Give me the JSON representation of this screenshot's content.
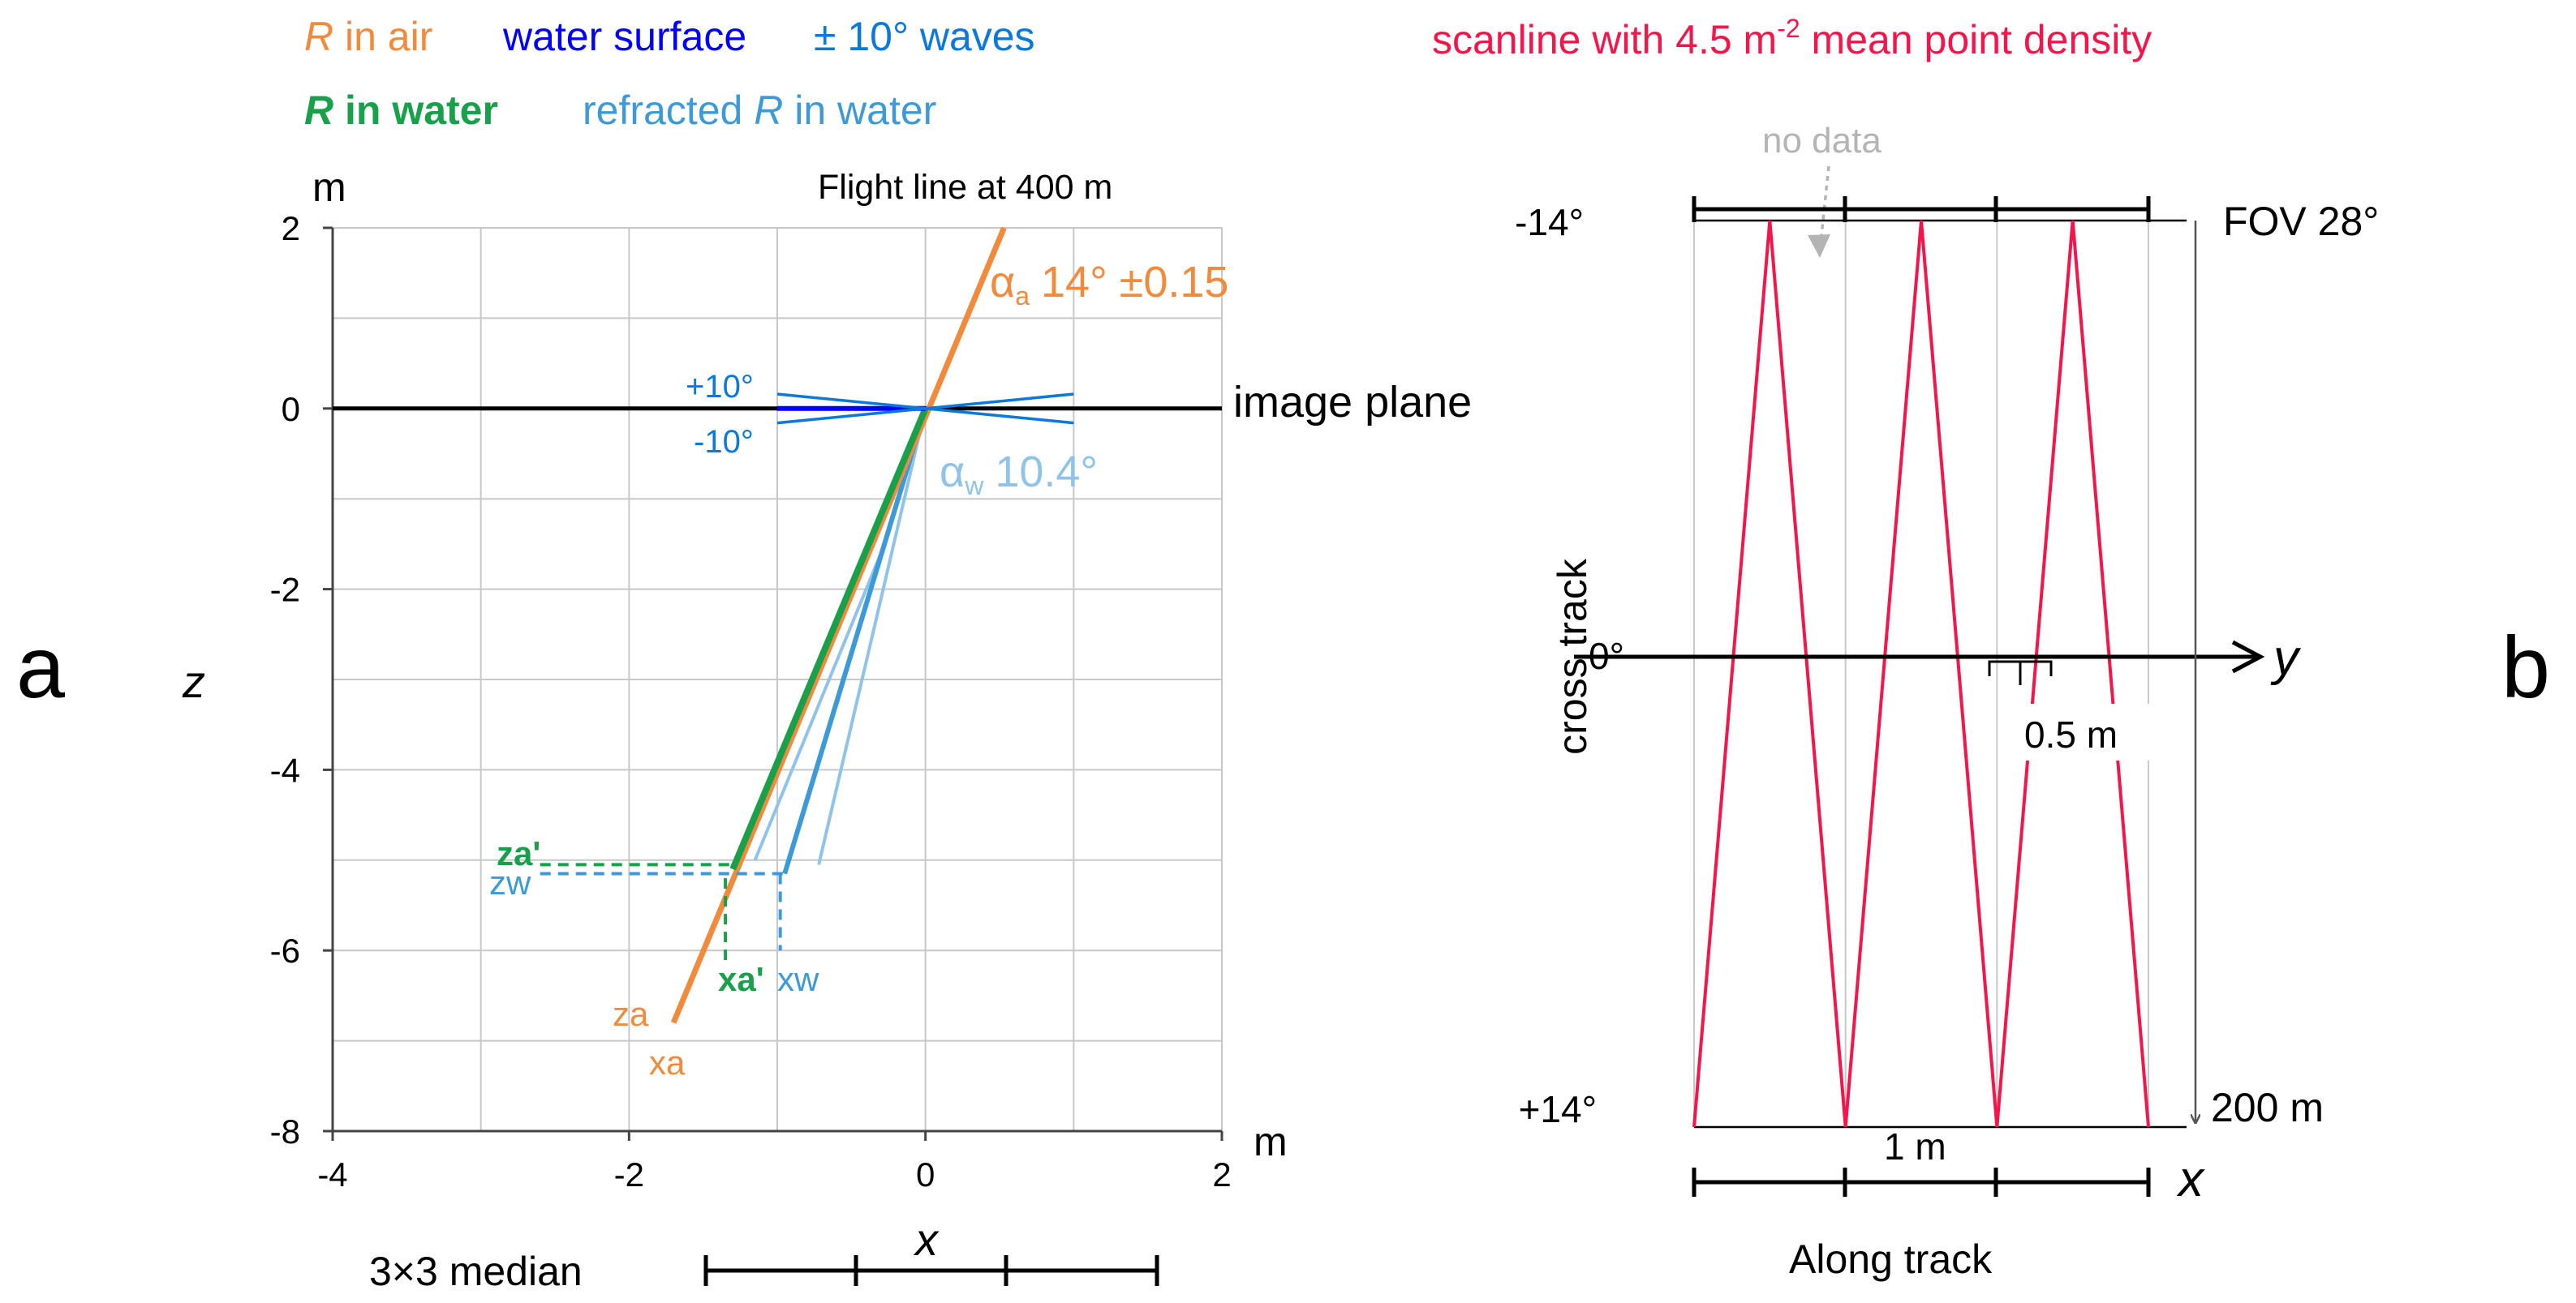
{
  "colors": {
    "air": "#F28A3C",
    "surface": "#0000FF",
    "waves": "#0A78DC",
    "water": "#18A14A",
    "refracted": "#3C9AD8",
    "refracted_light": "#8FC3EA",
    "scan": "#F5154A",
    "grid": "#C8C8C8",
    "nodata": "#B4B4B4",
    "axis": "#555555"
  },
  "panel_a": {
    "letter": "a",
    "legend": {
      "r_sym": "R",
      "r_in_air_rest": " in air",
      "water_surface": "water surface",
      "waves": "± 10° waves",
      "r_in_water_rest": " in water",
      "refracted_prefix": "refracted ",
      "refracted_suffix": " in water"
    },
    "chart_data": {
      "type": "line",
      "xlabel": "x",
      "ylabel": "z",
      "x_unit": "m",
      "y_unit": "m",
      "xlim": [
        -4,
        2
      ],
      "ylim": [
        -8,
        2
      ],
      "x_ticks": [
        -4,
        -2,
        0,
        2
      ],
      "y_ticks": [
        2,
        0,
        -2,
        -4,
        -6,
        -8
      ],
      "x_tick_labels": [
        "-4",
        "-2",
        "0",
        "2"
      ],
      "y_tick_labels": [
        "2",
        "0",
        "-2",
        "-4",
        "-6",
        "-8"
      ],
      "grid_step": 1,
      "series": [
        {
          "name": "R in air",
          "color_key": "air",
          "x": [
            0.53,
            -1.7
          ],
          "y": [
            2.0,
            -6.8
          ]
        },
        {
          "name": "R in water",
          "color_key": "water",
          "x": [
            0,
            -1.3
          ],
          "y": [
            0,
            -5.1
          ]
        },
        {
          "name": "refracted R in water",
          "color_key": "refracted",
          "x": [
            0,
            -0.95
          ],
          "y": [
            0,
            -5.15
          ]
        },
        {
          "name": "refracted R in water (+10° wave)",
          "color_key": "refracted_light",
          "x": [
            0,
            -0.72
          ],
          "y": [
            0,
            -5.05
          ]
        },
        {
          "name": "refracted R in water (-10° wave)",
          "color_key": "refracted_light",
          "x": [
            -0.3,
            -1.15
          ],
          "y": [
            -1.6,
            -5.0
          ]
        },
        {
          "name": "water surface",
          "color_key": "surface",
          "x": [
            -1,
            0
          ],
          "y": [
            0,
            0
          ]
        },
        {
          "name": "+10° wave",
          "color_key": "waves",
          "x": [
            -1,
            1
          ],
          "y": [
            0.16,
            -0.16
          ]
        },
        {
          "name": "-10° wave",
          "color_key": "waves",
          "x": [
            -1,
            1
          ],
          "y": [
            -0.16,
            0.16
          ]
        }
      ],
      "image_plane_y": 0,
      "markers": {
        "za_prime": -5.05,
        "zw": -5.15,
        "xa_prime": -1.3,
        "xw": -0.95,
        "drop_bottom": -6.0
      },
      "annotations": {
        "flight_line": "Flight line at 400 m",
        "alpha_sym": "α",
        "alpha_a_sub": "a",
        "alpha_a_value": "14° ±0.15",
        "alpha_w_sub": "w",
        "alpha_w_value": "10.4°",
        "plus10": "+10°",
        "minus10": "-10°",
        "image_plane": "image plane",
        "za_prime": "za'",
        "zw": "zw",
        "xa_prime": "xa'",
        "xw": "xw",
        "za": "za",
        "xa": "xa"
      },
      "median_label": "3×3 median"
    }
  },
  "panel_b": {
    "letter": "b",
    "chart_data": {
      "type": "line",
      "title_main": "scanline with 4.5 m",
      "title_sup": "-2",
      "title_tail": " mean point density",
      "no_data": "no data",
      "scan_angle_top": "-14°",
      "scan_angle_mid": "0°",
      "scan_angle_bottom": "+14°",
      "fov": "FOV 28°",
      "distance": "200 m",
      "y_axis": "y",
      "x_axis": "x",
      "cross_track": "cross track",
      "along_track": "Along track",
      "spacing_half": "0.5 m",
      "spacing_full": "1 m",
      "along_m": [
        0,
        0.5,
        1.0,
        1.5,
        2.0,
        2.5,
        3.0
      ],
      "scan_angle_deg": [
        14,
        -14,
        14,
        -14,
        14,
        -14,
        14
      ],
      "along_range_m": [
        0,
        3.0
      ],
      "angle_range_deg": [
        -14,
        14
      ],
      "grid_along_m": [
        0,
        1,
        2,
        3
      ]
    }
  }
}
